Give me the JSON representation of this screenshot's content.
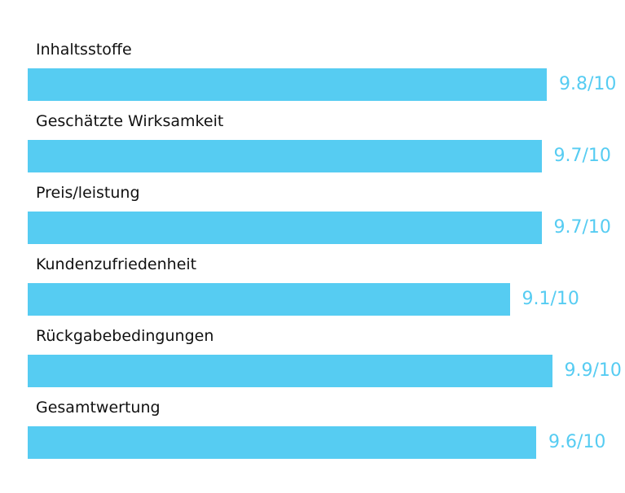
{
  "chart_data": {
    "type": "bar",
    "orientation": "horizontal",
    "categories": [
      "Inhaltsstoffe",
      "Geschätzte Wirksamkeit",
      "Preis/leistung",
      "Kundenzufriedenheit",
      "Rückgabebedingungen",
      "Gesamtwertung"
    ],
    "values": [
      9.8,
      9.7,
      9.7,
      9.1,
      9.9,
      9.6
    ],
    "value_labels": [
      "9.8/10",
      "9.7/10",
      "9.7/10",
      "9.1/10",
      "9.9/10",
      "9.6/10"
    ],
    "xlim": [
      0,
      10
    ],
    "grid": false,
    "bar_color": "#56CCF2",
    "label_color": "#111111"
  }
}
